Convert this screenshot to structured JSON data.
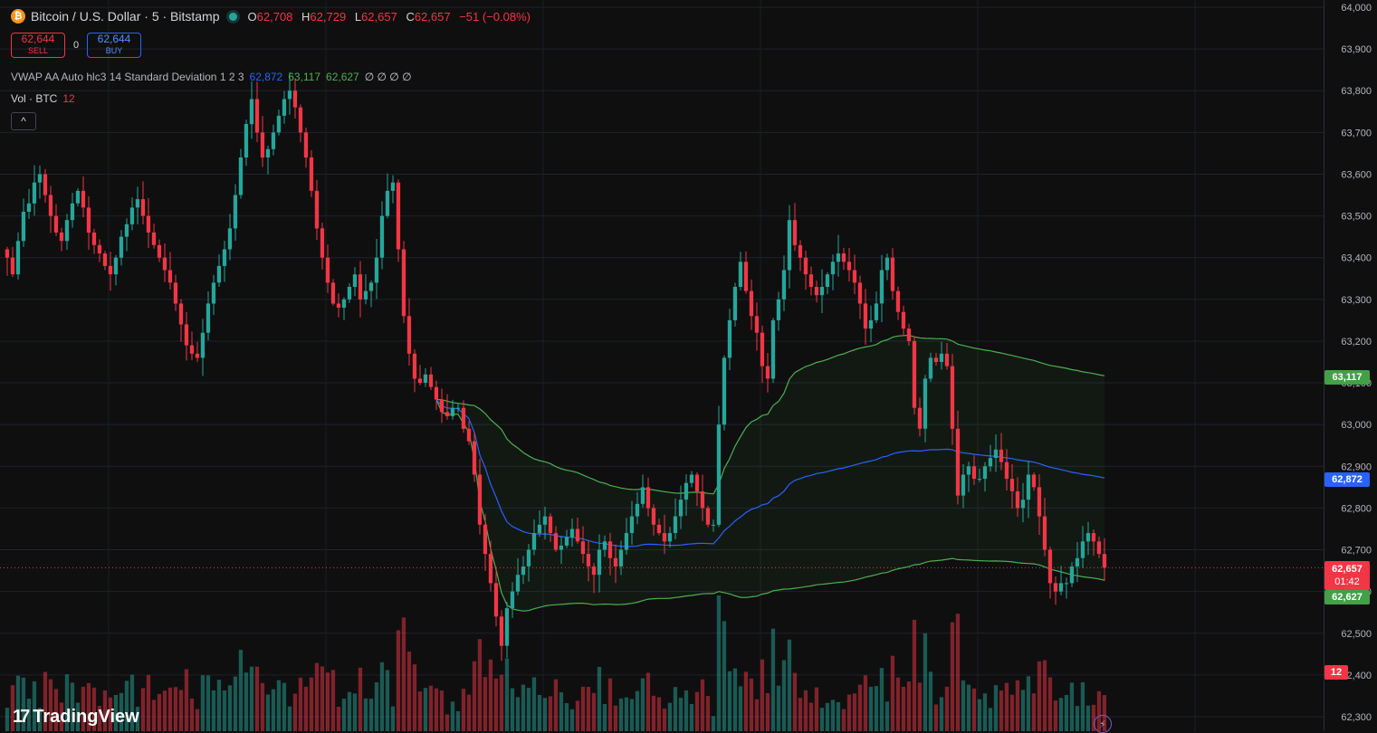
{
  "header": {
    "symbol_icon": "bitcoin-icon",
    "symbol": "Bitcoin / U.S. Dollar · 5 · Bitstamp",
    "ohlc": {
      "o_label": "O",
      "o": "62,708",
      "h_label": "H",
      "h": "62,729",
      "l_label": "L",
      "l": "62,657",
      "c_label": "C",
      "c": "62,657",
      "change": "−51 (−0.08%)"
    }
  },
  "trade": {
    "sell_price": "62,644",
    "sell_label": "SELL",
    "spread": "0",
    "buy_price": "62,644",
    "buy_label": "BUY"
  },
  "indicators": {
    "vwap_label": "VWAP AA Auto hlc3 14 Standard Deviation 1 2 3",
    "vwap_value": "62,872",
    "upper_value": "63,117",
    "lower_value": "62,627",
    "empty_values": "∅ ∅ ∅ ∅",
    "vol_label": "Vol · BTC",
    "vol_value": "12"
  },
  "price_axis": {
    "ticks": [
      "64,000",
      "63,900",
      "63,800",
      "63,700",
      "63,600",
      "63,500",
      "63,400",
      "63,300",
      "63,200",
      "63,100",
      "63,000",
      "62,900",
      "62,800",
      "62,700",
      "62,600",
      "62,500",
      "62,400",
      "62,300"
    ]
  },
  "tags": {
    "upper": "63,117",
    "vwap": "62,872",
    "last": "62,657",
    "countdown": "01:42",
    "lower": "62,627",
    "volume": "12"
  },
  "brand": {
    "name": "TradingView"
  },
  "colors": {
    "up": "#26a69a",
    "down": "#f23645",
    "vwap": "#2962ff",
    "band": "#4caf50",
    "bg": "#0f0f0f"
  },
  "chart_data": {
    "type": "candlestick",
    "timeframe": "5",
    "ylim": [
      62300,
      64000
    ],
    "grid": true,
    "last_price": 62657,
    "candles_close": [
      63400,
      63360,
      63440,
      63510,
      63530,
      63580,
      63600,
      63550,
      63500,
      63460,
      63440,
      63490,
      63530,
      63560,
      63520,
      63460,
      63430,
      63410,
      63380,
      63360,
      63400,
      63450,
      63480,
      63520,
      63540,
      63500,
      63460,
      63430,
      63400,
      63370,
      63340,
      63290,
      63240,
      63190,
      63170,
      63160,
      63220,
      63290,
      63340,
      63380,
      63420,
      63470,
      63550,
      63640,
      63720,
      63780,
      63700,
      63640,
      63660,
      63700,
      63740,
      63780,
      63800,
      63760,
      63700,
      63640,
      63560,
      63470,
      63400,
      63340,
      63290,
      63280,
      63300,
      63330,
      63360,
      63300,
      63320,
      63340,
      63400,
      63500,
      63560,
      63580,
      63420,
      63260,
      63170,
      63110,
      63100,
      63120,
      63090,
      63060,
      63030,
      63020,
      63040,
      63040,
      62990,
      62960,
      62880,
      62760,
      62690,
      62620,
      62540,
      62470,
      62560,
      62600,
      62640,
      62660,
      62700,
      62740,
      62760,
      62780,
      62740,
      62700,
      62710,
      62730,
      62750,
      62720,
      62690,
      62660,
      62640,
      62700,
      62720,
      62680,
      62660,
      62700,
      62740,
      62780,
      62810,
      62850,
      62800,
      62760,
      62740,
      62720,
      62740,
      62780,
      62820,
      62860,
      62880,
      62840,
      62800,
      62760,
      62760,
      63000,
      63160,
      63250,
      63330,
      63390,
      63320,
      63260,
      63220,
      63140,
      63110,
      63250,
      63300,
      63370,
      63490,
      63430,
      63400,
      63360,
      63330,
      63310,
      63330,
      63360,
      63390,
      63410,
      63390,
      63370,
      63340,
      63290,
      63230,
      63250,
      63290,
      63370,
      63400,
      63320,
      63270,
      63230,
      63200,
      63040,
      62990,
      63110,
      63160,
      63150,
      63170,
      63140,
      62990,
      62830,
      62880,
      62900,
      62870,
      62870,
      62900,
      62920,
      62940,
      62910,
      62870,
      62840,
      62800,
      62820,
      62880,
      62850,
      62780,
      62700,
      62620,
      62600,
      62620,
      62620,
      62660,
      62680,
      62720,
      62740,
      62720,
      62690,
      62657
    ],
    "volume_note": "Vol · BTC, last 12",
    "vwap_last": 62872,
    "upper_band_last": 63117,
    "lower_band_last": 62627
  }
}
